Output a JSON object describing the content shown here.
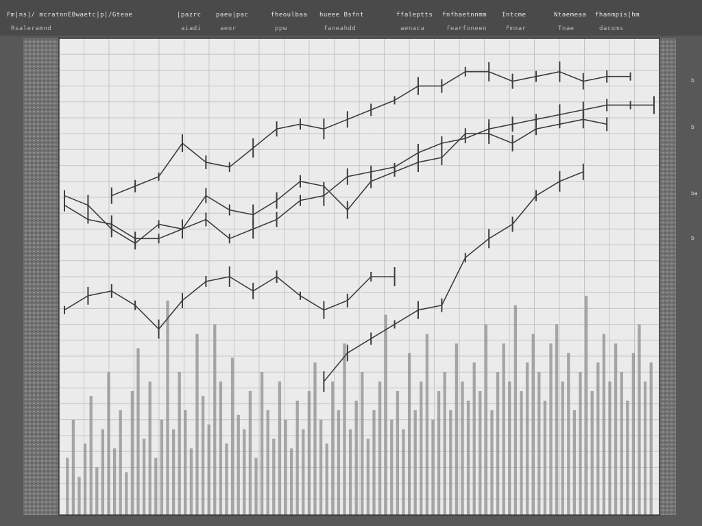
{
  "window": {
    "title": "Fm|ns|/ mcratnnEBwaetc|p|/Gteae"
  },
  "toolbar": {
    "menus": [
      {
        "label": "Fm|ns|/ mcratnnEBwaetc|p|/Gteae",
        "sub": "Rsaleramnd"
      },
      {
        "label": "|pazrc",
        "sub": "aiadi"
      },
      {
        "label": "paeu|pac",
        "sub": "aeor"
      },
      {
        "label": "fheoulbaa",
        "sub": "ppw"
      },
      {
        "label": "hueee Bsfnt",
        "sub": "faneahdd"
      },
      {
        "label": "ffaleptts",
        "sub": "aenaca"
      },
      {
        "label": "fnfhaetnnmm",
        "sub": "fearfoneen"
      },
      {
        "label": "Intcme",
        "sub": "Fmnar"
      },
      {
        "label": "Ntaemeaa",
        "sub": "Tnae"
      },
      {
        "label": "fhanmpis|hm",
        "sub": "dacoms"
      }
    ]
  },
  "right_axis": {
    "labels": [
      "b",
      "b",
      "ba",
      "b"
    ]
  },
  "colors": {
    "background": "#585858",
    "plot_background": "#ebebeb",
    "grid": "#c4c4c4",
    "series": "#3c3c3c",
    "volume": "#8e8e8e"
  },
  "chart_data": {
    "type": "line",
    "grid": true,
    "legend": "none",
    "x_range": [
      0,
      100
    ],
    "y_range": [
      0,
      100
    ],
    "series": [
      {
        "x": [
          0,
          4,
          8,
          12,
          16,
          20,
          24,
          28,
          32,
          36,
          40,
          44,
          48,
          52,
          56
        ],
        "y": [
          43,
          46,
          47,
          44,
          39,
          45,
          49,
          50,
          47,
          50,
          46,
          43,
          45,
          50,
          50
        ]
      },
      {
        "x": [
          0,
          4,
          8,
          12,
          16,
          20,
          24,
          28,
          32,
          36,
          40,
          44,
          48,
          52,
          56,
          60,
          64,
          68,
          72,
          76,
          80,
          84,
          88,
          92
        ],
        "y": [
          65,
          62,
          61,
          58,
          58,
          60,
          67,
          64,
          63,
          66,
          70,
          69,
          64,
          70,
          72,
          74,
          75,
          80,
          80,
          78,
          81,
          82,
          83,
          82
        ]
      },
      {
        "x": [
          8,
          12,
          16,
          20,
          24,
          28,
          32,
          36,
          40,
          44,
          48,
          52,
          56,
          60,
          64,
          68,
          72,
          76,
          80,
          84,
          88,
          92,
          96
        ],
        "y": [
          67,
          69,
          71,
          78,
          74,
          73,
          77,
          81,
          82,
          81,
          83,
          85,
          87,
          90,
          90,
          93,
          93,
          91,
          92,
          93,
          91,
          92,
          92
        ]
      },
      {
        "x": [
          44,
          48,
          52,
          56,
          60,
          64,
          68,
          72,
          76,
          80,
          84,
          88
        ],
        "y": [
          28,
          34,
          37,
          40,
          43,
          44,
          54,
          58,
          61,
          67,
          70,
          72
        ]
      },
      {
        "x": [
          0,
          4,
          8,
          12,
          16,
          20,
          24,
          28,
          32,
          36,
          40,
          44,
          48,
          52,
          56,
          60,
          64,
          68,
          72,
          76,
          80,
          84,
          88,
          92,
          96,
          100
        ],
        "y": [
          67,
          65,
          60,
          57,
          61,
          60,
          62,
          58,
          60,
          62,
          66,
          67,
          71,
          72,
          73,
          76,
          78,
          79,
          81,
          82,
          83,
          84,
          85,
          86,
          86,
          86
        ]
      }
    ],
    "volume": [
      12,
      20,
      8,
      15,
      25,
      10,
      18,
      30,
      14,
      22,
      9,
      26,
      35,
      16,
      28,
      12,
      20,
      45,
      18,
      30,
      22,
      14,
      38,
      25,
      19,
      40,
      28,
      15,
      33,
      21,
      18,
      26,
      12,
      30,
      22,
      16,
      28,
      20,
      14,
      24,
      18,
      26,
      32,
      20,
      15,
      28,
      22,
      36,
      18,
      24,
      30,
      16,
      22,
      28,
      42,
      20,
      26,
      18,
      34,
      22,
      28,
      38,
      20,
      26,
      30,
      22,
      36,
      28,
      24,
      32,
      26,
      40,
      22,
      30,
      36,
      28,
      44,
      26,
      32,
      38,
      30,
      24,
      36,
      40,
      28,
      34,
      22,
      30,
      46,
      26,
      32,
      38,
      28,
      36,
      30,
      24,
      34,
      40,
      28,
      32
    ]
  }
}
